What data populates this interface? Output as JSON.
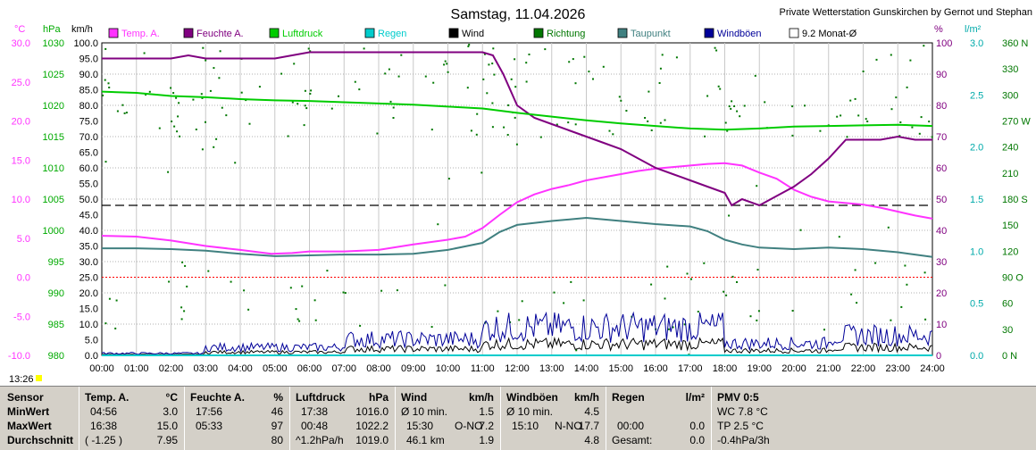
{
  "header": {
    "title": "Samstag, 11.04.2026",
    "station": "Private Wetterstation Gunskirchen by Gernot und Stephan",
    "time_marker": "13:26"
  },
  "units": {
    "temp": "°C",
    "pressure": "hPa",
    "wind": "km/h",
    "humidity": "%",
    "rain": "l/m²",
    "direction": "360 N"
  },
  "legend": [
    {
      "label": "Temp. A.",
      "color": "#ff33ff"
    },
    {
      "label": "Feuchte A.",
      "color": "#800080"
    },
    {
      "label": "Luftdruck",
      "color": "#00cc00"
    },
    {
      "label": "Regen",
      "color": "#00cccc"
    },
    {
      "label": "Wind",
      "color": "#000000"
    },
    {
      "label": "Richtung",
      "color": "#007700"
    },
    {
      "label": "Taupunkt",
      "color": "#408080"
    },
    {
      "label": "Windböen",
      "color": "#000099"
    },
    {
      "label": "9.2 Monat-Ø",
      "color": "#ffffff"
    }
  ],
  "chart_data": {
    "type": "line",
    "title": "Samstag, 11.04.2026",
    "x_ticks": [
      "00:00",
      "01:00",
      "02:00",
      "03:00",
      "04:00",
      "05:00",
      "06:00",
      "07:00",
      "08:00",
      "09:00",
      "10:00",
      "11:00",
      "12:00",
      "13:00",
      "14:00",
      "15:00",
      "16:00",
      "17:00",
      "18:00",
      "19:00",
      "20:00",
      "21:00",
      "22:00",
      "23:00",
      "24:00"
    ],
    "axes": {
      "temp": {
        "label": "°C",
        "min": -10,
        "max": 30,
        "ticks": [
          "30.0",
          "25.0",
          "20.0",
          "15.0",
          "10.0",
          "5.0",
          "0.0",
          "-5.0",
          "-10.0"
        ]
      },
      "pressure": {
        "label": "hPa",
        "min": 980,
        "max": 1030,
        "ticks": [
          "1030",
          "1025",
          "1020",
          "1015",
          "1010",
          "1005",
          "1000",
          "995",
          "990",
          "985",
          "980"
        ]
      },
      "wind": {
        "label": "km/h",
        "min": 0,
        "max": 100,
        "ticks": [
          "100.0",
          "95.0",
          "90.0",
          "85.0",
          "80.0",
          "75.0",
          "70.0",
          "65.0",
          "60.0",
          "55.0",
          "50.0",
          "45.0",
          "40.0",
          "35.0",
          "30.0",
          "25.0",
          "20.0",
          "15.0",
          "10.0",
          "5.0",
          "0.0"
        ]
      },
      "humidity": {
        "label": "%",
        "min": 0,
        "max": 100,
        "ticks": [
          "100",
          "90",
          "80",
          "70",
          "60",
          "50",
          "40",
          "30",
          "20",
          "10",
          "0"
        ]
      },
      "rain": {
        "label": "l/m²",
        "min": 0,
        "max": 3,
        "ticks": [
          "3.0",
          "2.5",
          "2.0",
          "1.5",
          "1.0",
          "0.5",
          "0.0"
        ]
      },
      "direction": {
        "label": "",
        "min": 0,
        "max": 360,
        "ticks": [
          "360 N",
          "330",
          "300",
          "270 W",
          "240",
          "210",
          "180 S",
          "150",
          "120",
          "90 O",
          "60",
          "30",
          "0 N"
        ]
      }
    },
    "monthly_avg_temp": 9.2,
    "series": [
      {
        "name": "Temp. A.",
        "axis": "temp",
        "x": [
          0,
          1,
          2,
          3,
          4,
          4.9,
          5.5,
          6,
          7,
          8,
          9,
          10,
          10.5,
          11,
          11.5,
          12,
          12.5,
          13,
          13.5,
          14,
          14.5,
          15,
          15.5,
          16,
          16.5,
          17,
          17.5,
          18,
          18.5,
          19,
          19.5,
          20,
          20.5,
          21,
          21.5,
          22,
          22.5,
          23,
          23.5,
          24
        ],
        "y": [
          5.3,
          5.2,
          4.7,
          4.0,
          3.5,
          3.0,
          3.1,
          3.3,
          3.3,
          3.5,
          4.2,
          4.8,
          5.2,
          6.3,
          8.0,
          9.6,
          10.6,
          11.3,
          11.8,
          12.4,
          12.8,
          13.2,
          13.6,
          13.9,
          14.1,
          14.3,
          14.5,
          14.6,
          14.3,
          13.4,
          12.6,
          11.2,
          10.3,
          9.7,
          9.5,
          9.3,
          8.9,
          8.4,
          7.9,
          7.5
        ]
      },
      {
        "name": "Feuchte A.",
        "axis": "humidity",
        "x": [
          0,
          1,
          2,
          2.5,
          3,
          4,
          5,
          5.5,
          6,
          8,
          10,
          11,
          11.3,
          11.6,
          12,
          12.5,
          13,
          13.5,
          14,
          14.5,
          15,
          15.5,
          16,
          16.5,
          17,
          17.5,
          18,
          18.2,
          18.5,
          19,
          19.5,
          20,
          20.5,
          21,
          21.5,
          22,
          22.5,
          23,
          23.5,
          24
        ],
        "y": [
          95,
          95,
          95,
          96,
          95,
          95,
          95,
          96,
          97,
          97,
          97,
          97,
          96,
          90,
          80,
          76,
          74,
          72,
          70,
          68,
          66,
          63,
          60,
          58,
          56,
          54,
          52,
          48,
          50,
          48,
          51,
          54,
          58,
          63,
          69,
          69,
          69,
          70,
          69,
          69
        ]
      },
      {
        "name": "Luftdruck",
        "axis": "pressure",
        "x": [
          0,
          1,
          2,
          3,
          4,
          5,
          6,
          7,
          8,
          9,
          10,
          11,
          12,
          13,
          14,
          15,
          16,
          17,
          18,
          19,
          20,
          21,
          22,
          23,
          24
        ],
        "y": [
          1022.2,
          1022.0,
          1021.5,
          1021.3,
          1021.0,
          1020.8,
          1020.7,
          1020.5,
          1020.3,
          1020.1,
          1019.8,
          1019.5,
          1018.8,
          1018.2,
          1017.6,
          1017.1,
          1016.7,
          1016.3,
          1016.1,
          1016.3,
          1016.6,
          1016.7,
          1016.8,
          1016.9,
          1016.7
        ]
      },
      {
        "name": "Taupunkt",
        "axis": "temp",
        "x": [
          0,
          1,
          2,
          3,
          4,
          5,
          6,
          7,
          8,
          9,
          10,
          11,
          11.5,
          12,
          13,
          14,
          15,
          16,
          17,
          17.5,
          18,
          18.5,
          19,
          20,
          21,
          22,
          23,
          24
        ],
        "y": [
          3.7,
          3.7,
          3.6,
          3.4,
          3.0,
          2.7,
          2.8,
          2.9,
          2.9,
          3.0,
          3.5,
          4.4,
          5.8,
          6.7,
          7.2,
          7.6,
          7.2,
          6.8,
          6.5,
          5.9,
          4.8,
          4.2,
          3.8,
          3.6,
          3.8,
          3.6,
          3.2,
          2.6
        ]
      },
      {
        "name": "Regen",
        "axis": "rain",
        "x": [
          0,
          24
        ],
        "y": [
          0.0,
          0.0
        ]
      }
    ]
  },
  "table": {
    "rows": [
      "Sensor",
      "MinWert",
      "MaxWert",
      "Durchschnitt"
    ],
    "temp": {
      "head": "Temp. A.",
      "unit": "°C",
      "min_time": "04:56",
      "min_val": "3.0",
      "max_time": "16:38",
      "max_val": "15.0",
      "avg_note": "( -1.25 )",
      "avg_val": "7.95"
    },
    "hum": {
      "head": "Feuchte A.",
      "unit": "%",
      "min_time": "17:56",
      "min_val": "46",
      "max_time": "05:33",
      "max_val": "97",
      "avg_val": "80"
    },
    "press": {
      "head": "Luftdruck",
      "unit": "hPa",
      "min_time": "17:38",
      "min_val": "1016.0",
      "max_time": "00:48",
      "max_val": "1022.2",
      "avg_note": "^1.2hPa/h",
      "avg_val": "1019.0"
    },
    "wind": {
      "head": "Wind",
      "unit": "km/h",
      "min_label": "Ø 10 min.",
      "min_val": "1.5",
      "max_time": "15:30",
      "max_dir": "O-NO",
      "max_val": "7.2",
      "avg_note": "46.1 km",
      "avg_val": "1.9"
    },
    "gust": {
      "head": "Windböen",
      "unit": "km/h",
      "min_label": "Ø 10 min.",
      "min_val": "4.5",
      "max_time": "15:10",
      "max_dir": "N-NO",
      "max_val": "17.7",
      "avg_val": "4.8"
    },
    "rain": {
      "head": "Regen",
      "unit": "l/m²",
      "max_time": "00:00",
      "max_val": "0.0",
      "avg_note": "Gesamt:",
      "avg_val": "0.0"
    },
    "pmv": {
      "head": "PMV 0:5",
      "min_val": "WC 7.8 °C",
      "max_val": "TP 2.5 °C",
      "avg_val": "-0.4hPa/3h"
    }
  }
}
